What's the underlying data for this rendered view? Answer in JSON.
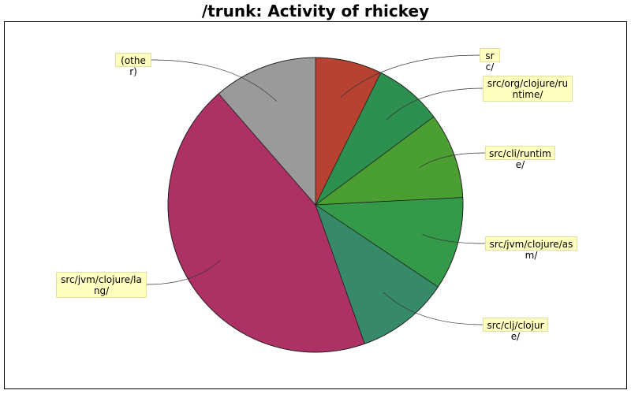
{
  "chart_data": {
    "type": "pie",
    "title": "/trunk: Activity of rhickey",
    "start_angle_deg": 90,
    "direction": "clockwise",
    "slices": [
      {
        "label": "src/",
        "value": 7.3,
        "color": "#b84232"
      },
      {
        "label": "src/org/clojure/runtime/",
        "value": 7.5,
        "color": "#2e9050"
      },
      {
        "label": "src/cli/runtime/",
        "value": 9.4,
        "color": "#4a9e32"
      },
      {
        "label": "src/jvm/clojure/asm/",
        "value": 10.2,
        "color": "#349a4a"
      },
      {
        "label": "src/clj/clojure/",
        "value": 10.2,
        "color": "#368a68"
      },
      {
        "label": "src/jvm/clojure/lang/",
        "value": 44.0,
        "color": "#ad3164"
      },
      {
        "label": "(other)",
        "value": 11.4,
        "color": "#9a9a9a"
      }
    ]
  }
}
